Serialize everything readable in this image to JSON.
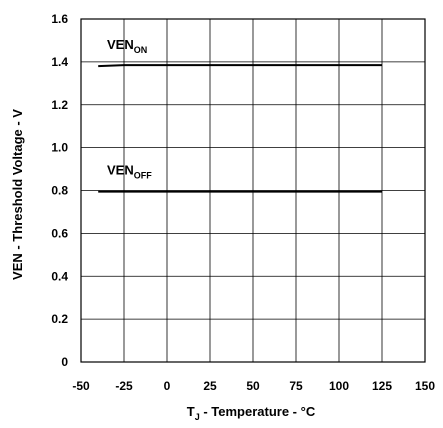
{
  "chart_data": {
    "type": "line",
    "title": "",
    "xlabel": {
      "main": "T",
      "sub": "J",
      "rest": " - Temperature - °C"
    },
    "ylabel": "VEN - Threshold Voltage - V",
    "xlim": [
      -50,
      150
    ],
    "ylim": [
      0,
      1.6
    ],
    "xticks": [
      -50,
      -25,
      0,
      25,
      50,
      75,
      100,
      125,
      150
    ],
    "xtick_labels": [
      "-50",
      "-25",
      "0",
      "25",
      "50",
      "75",
      "100",
      "125",
      "150"
    ],
    "yticks": [
      0,
      0.2,
      0.4,
      0.6,
      0.8,
      1.0,
      1.2,
      1.4,
      1.6
    ],
    "ytick_labels": [
      "0",
      "0.2",
      "0.4",
      "0.6",
      "0.8",
      "1.0",
      "1.2",
      "1.4",
      "1.6"
    ],
    "grid": true,
    "series": [
      {
        "label": {
          "main": "VEN",
          "sub": "ON"
        },
        "x": [
          -40,
          -25,
          0,
          25,
          50,
          75,
          100,
          125
        ],
        "y": [
          1.38,
          1.385,
          1.385,
          1.385,
          1.385,
          1.385,
          1.385,
          1.385
        ]
      },
      {
        "label": {
          "main": "VEN",
          "sub": "OFF"
        },
        "x": [
          -40,
          -25,
          0,
          25,
          50,
          75,
          100,
          125
        ],
        "y": [
          0.795,
          0.795,
          0.795,
          0.795,
          0.795,
          0.795,
          0.795,
          0.795
        ]
      }
    ]
  }
}
